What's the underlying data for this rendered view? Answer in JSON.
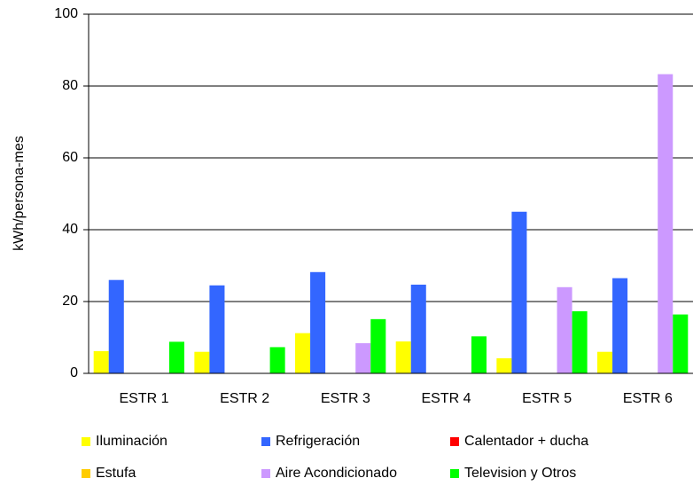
{
  "chart_data": {
    "type": "bar",
    "y_label": "kWh/persona-mes",
    "categories": [
      "ESTR 1",
      "ESTR 2",
      "ESTR 3",
      "ESTR 4",
      "ESTR 5",
      "ESTR 6"
    ],
    "series": [
      {
        "name": "Iluminación",
        "color": "#ffff00",
        "values": [
          6.2,
          6,
          11.2,
          8.9,
          4.2,
          6
        ]
      },
      {
        "name": "Refrigeración",
        "color": "#3366ff",
        "values": [
          26,
          24.5,
          28.2,
          24.7,
          45,
          26.5
        ]
      },
      {
        "name": "Calentador + ducha",
        "color": "#ff0000",
        "values": [
          0,
          0,
          0,
          0,
          0,
          0
        ]
      },
      {
        "name": "Estufa",
        "color": "#ffcc00",
        "values": [
          0,
          0,
          0,
          0,
          0,
          0
        ]
      },
      {
        "name": "Aire Acondicionado",
        "color": "#cc99ff",
        "values": [
          0,
          0,
          8.4,
          0,
          24,
          83.3
        ]
      },
      {
        "name": "Television y Otros",
        "color": "#00ff00",
        "values": [
          8.8,
          7.3,
          15.1,
          10.3,
          17.3,
          16.4
        ]
      }
    ],
    "ylim": [
      0,
      100
    ],
    "yticks": [
      0,
      20,
      40,
      60,
      80,
      100
    ],
    "grid": true
  }
}
